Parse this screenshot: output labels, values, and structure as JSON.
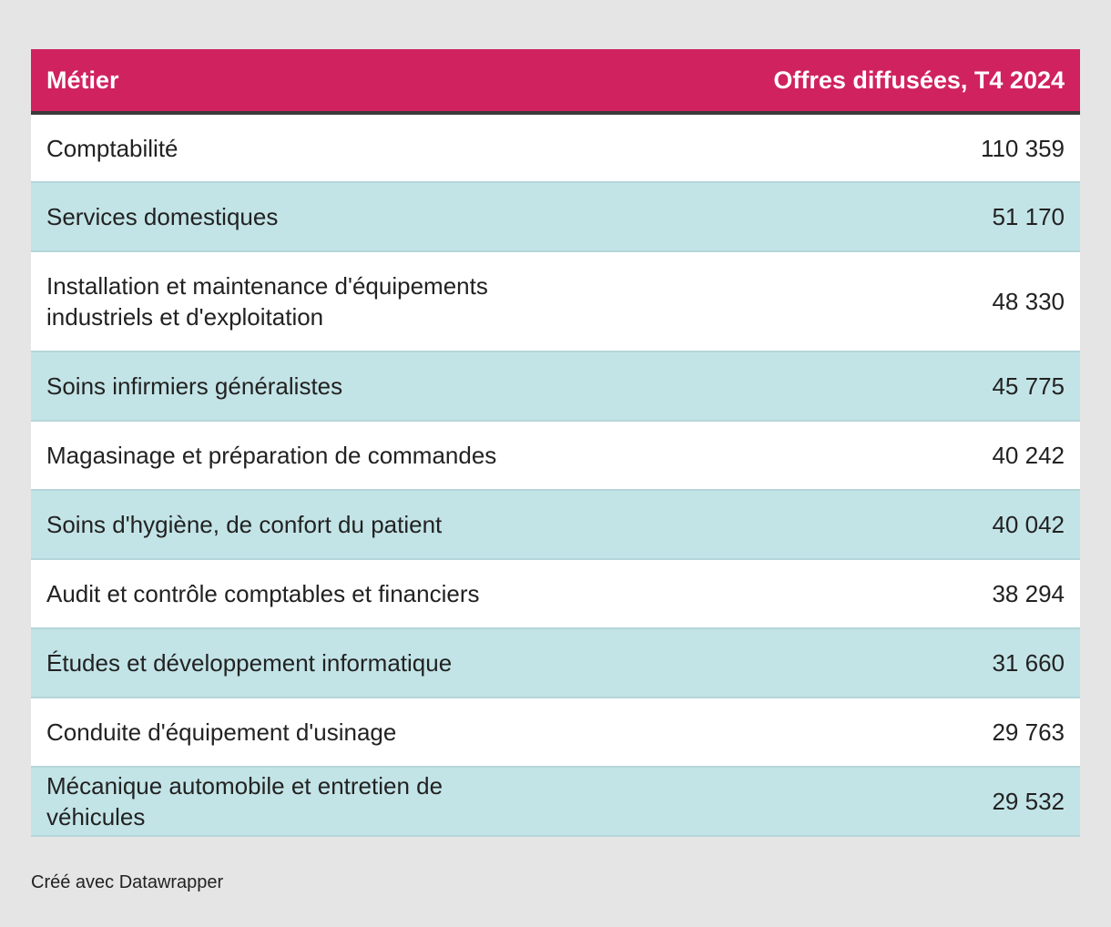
{
  "chart_data": {
    "type": "table",
    "columns": [
      "Métier",
      "Offres diffusées, T4 2024"
    ],
    "rows": [
      {
        "metier": "Comptabilité",
        "offres": "110 359"
      },
      {
        "metier": "Services domestiques",
        "offres": "51 170"
      },
      {
        "metier": "Installation et maintenance d'équipements industriels et d'exploitation",
        "offres": "48 330"
      },
      {
        "metier": "Soins infirmiers généralistes",
        "offres": "45 775"
      },
      {
        "metier": "Magasinage et préparation de commandes",
        "offres": "40 242"
      },
      {
        "metier": "Soins d'hygiène, de confort du patient",
        "offres": "40 042"
      },
      {
        "metier": "Audit et contrôle comptables et financiers",
        "offres": "38 294"
      },
      {
        "metier": "Études et développement informatique",
        "offres": "31 660"
      },
      {
        "metier": "Conduite d'équipement d'usinage",
        "offres": "29 763"
      },
      {
        "metier": "Mécanique automobile et entretien de véhicules",
        "offres": "29 532"
      }
    ],
    "values": [
      110359,
      51170,
      48330,
      45775,
      40242,
      40042,
      38294,
      31660,
      29763,
      29532
    ]
  },
  "footer": {
    "credit": "Créé avec Datawrapper"
  },
  "colors": {
    "header_bg": "#d0225e",
    "stripe": "#c3e4e7",
    "page_bg": "#e5e5e5"
  }
}
